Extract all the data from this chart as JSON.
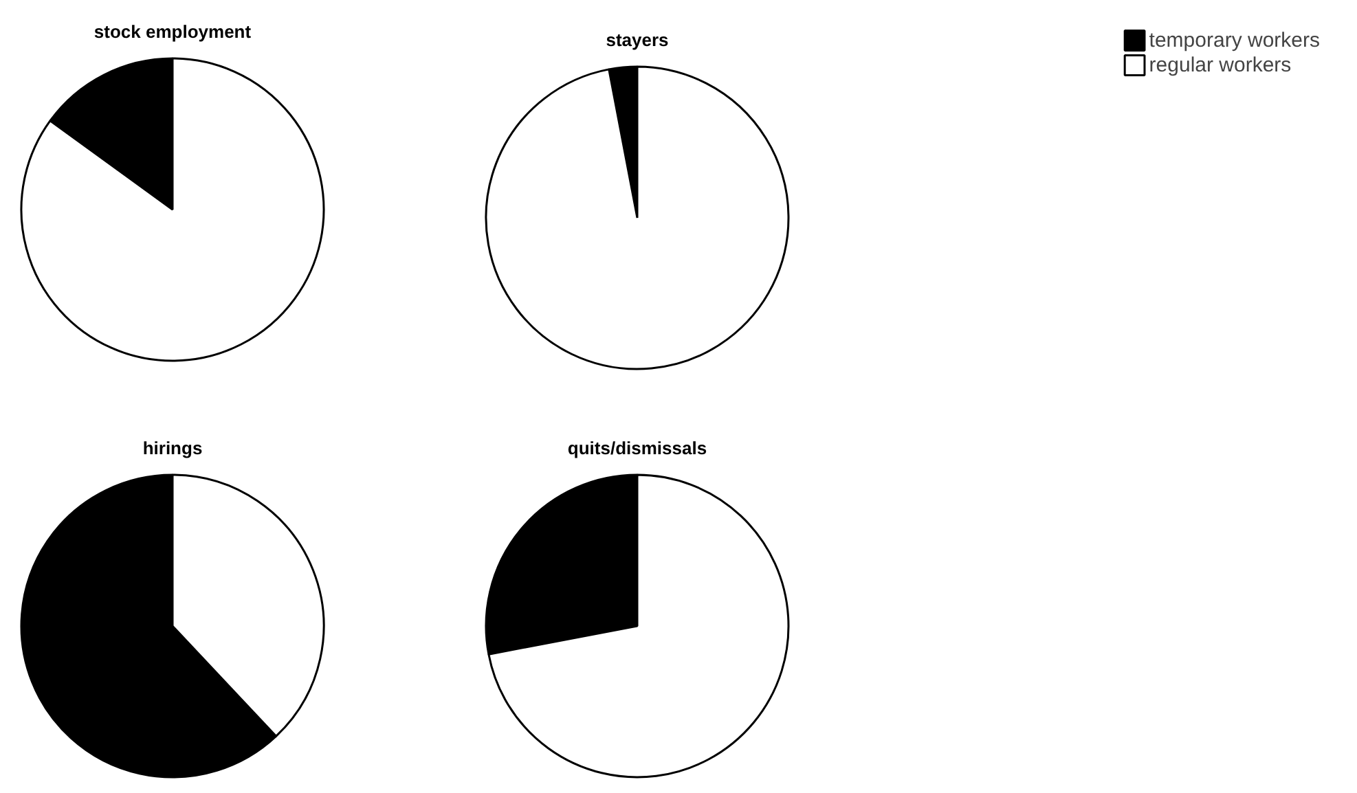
{
  "chart_data": [
    {
      "type": "pie",
      "title": "stock employment",
      "categories": [
        "temporary workers",
        "regular workers"
      ],
      "values": [
        15,
        85
      ],
      "colors": [
        "#000000",
        "#ffffff"
      ],
      "legend": "top right"
    },
    {
      "type": "pie",
      "title": "stayers",
      "categories": [
        null,
        null
      ],
      "values": [
        3,
        97
      ],
      "colors": [
        "#000000",
        "#ffffff"
      ]
    },
    {
      "type": "pie",
      "title": "hirings",
      "categories": [
        null,
        null
      ],
      "values": [
        62,
        38
      ],
      "colors": [
        "#000000",
        "#ffffff"
      ]
    },
    {
      "type": "pie",
      "title": "quits/dismissals",
      "categories": [
        null,
        null
      ],
      "values": [
        28,
        72
      ],
      "colors": [
        "#000000",
        "#ffffff"
      ]
    }
  ]
}
